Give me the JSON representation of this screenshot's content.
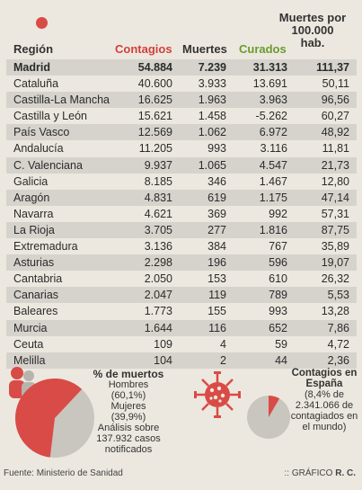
{
  "header": {
    "region": "Región",
    "contagios": "Contagios",
    "muertes": "Muertes",
    "curados": "Curados",
    "rate_line1": "Muertes por",
    "rate_line2": "100.000",
    "rate_line3": "hab."
  },
  "rows": [
    {
      "name": "Madrid",
      "contagios": "54.884",
      "muertes": "7.239",
      "curados": "31.313",
      "rate": "111,37"
    },
    {
      "name": "Cataluña",
      "contagios": "40.600",
      "muertes": "3.933",
      "curados": "13.691",
      "rate": "50,11"
    },
    {
      "name": "Castilla-La Mancha",
      "contagios": "16.625",
      "muertes": "1.963",
      "curados": "3.963",
      "rate": "96,56"
    },
    {
      "name": "Castilla y León",
      "contagios": "15.621",
      "muertes": "1.458",
      "curados": "-5.262",
      "rate": "60,27"
    },
    {
      "name": "País Vasco",
      "contagios": "12.569",
      "muertes": "1.062",
      "curados": "6.972",
      "rate": "48,92"
    },
    {
      "name": "Andalucía",
      "contagios": "11.205",
      "muertes": "993",
      "curados": "3.116",
      "rate": "11,81"
    },
    {
      "name": "C. Valenciana",
      "contagios": "9.937",
      "muertes": "1.065",
      "curados": "4.547",
      "rate": "21,73"
    },
    {
      "name": "Galicia",
      "contagios": "8.185",
      "muertes": "346",
      "curados": "1.467",
      "rate": "12,80"
    },
    {
      "name": "Aragón",
      "contagios": "4.831",
      "muertes": "619",
      "curados": "1.175",
      "rate": "47,14"
    },
    {
      "name": "Navarra",
      "contagios": "4.621",
      "muertes": "369",
      "curados": "992",
      "rate": "57,31"
    },
    {
      "name": "La Rioja",
      "contagios": "3.705",
      "muertes": "277",
      "curados": "1.816",
      "rate": "87,75"
    },
    {
      "name": "Extremadura",
      "contagios": "3.136",
      "muertes": "384",
      "curados": "767",
      "rate": "35,89"
    },
    {
      "name": "Asturias",
      "contagios": "2.298",
      "muertes": "196",
      "curados": "596",
      "rate": "19,07"
    },
    {
      "name": "Cantabria",
      "contagios": "2.050",
      "muertes": "153",
      "curados": "610",
      "rate": "26,32"
    },
    {
      "name": "Canarias",
      "contagios": "2.047",
      "muertes": "119",
      "curados": "789",
      "rate": "5,53"
    },
    {
      "name": "Baleares",
      "contagios": "1.773",
      "muertes": "155",
      "curados": "993",
      "rate": "13,28"
    },
    {
      "name": "Murcia",
      "contagios": "1.644",
      "muertes": "116",
      "curados": "652",
      "rate": "7,86"
    },
    {
      "name": "Ceuta",
      "contagios": "109",
      "muertes": "4",
      "curados": "59",
      "rate": "4,72"
    },
    {
      "name": "Melilla",
      "contagios": "104",
      "muertes": "2",
      "curados": "44",
      "rate": "2,36"
    }
  ],
  "deaths_pie": {
    "title": "% de muertos",
    "men_label": "Hombres",
    "men_value": "(60,1%)",
    "women_label": "Mujeres",
    "women_value": "(39,9%)",
    "note1": "Análisis sobre",
    "note2": "137.932 casos",
    "note3": "notificados",
    "men_fraction": 0.601,
    "color_men": "#d94b46",
    "color_women": "#c9c5bf"
  },
  "spain_pie": {
    "title1": "Contagios en",
    "title2": "España",
    "line1": "(8,4% de",
    "line2": "2.341.066 de",
    "line3": "contagiados en",
    "line4": "el mundo)",
    "spain_fraction": 0.084,
    "color_spain": "#d94b46",
    "color_world": "#c9c5bf"
  },
  "footer": {
    "source": "Fuente: Ministerio de Sanidad",
    "credit_prefix": ":: GRÁFICO",
    "credit_author": "R. C."
  },
  "colors": {
    "accent_red": "#d23f3a",
    "accent_green": "#6b9a2f",
    "row_shade": "#d6d3cd",
    "background": "#ece8df"
  }
}
